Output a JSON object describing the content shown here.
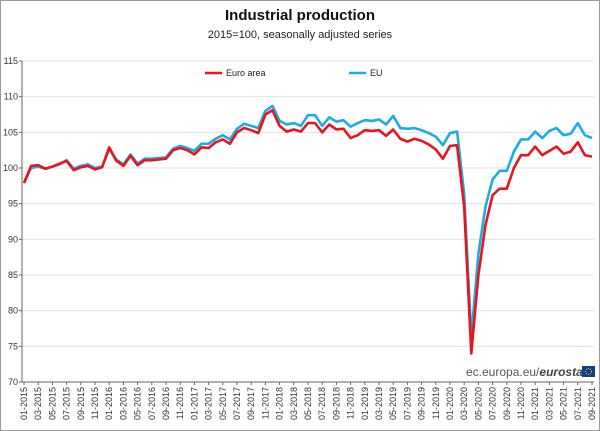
{
  "chart_data": {
    "type": "line",
    "title": "Industrial production",
    "subtitle": "2015=100, seasonally adjusted series",
    "ylim": [
      70,
      115
    ],
    "yticks": [
      70,
      75,
      80,
      85,
      90,
      95,
      100,
      105,
      110,
      115
    ],
    "xtick_labels": [
      "01-2015",
      "03-2015",
      "05-2015",
      "07-2015",
      "09-2015",
      "11-2015",
      "01-2016",
      "03-2016",
      "05-2016",
      "07-2016",
      "09-2016",
      "11-2016",
      "01-2017",
      "03-2017",
      "05-2017",
      "07-2017",
      "09-2017",
      "11-2017",
      "01-2018",
      "03-2018",
      "05-2018",
      "07-2018",
      "09-2018",
      "11-2018",
      "01-2019",
      "03-2019",
      "05-2019",
      "07-2019",
      "09-2019",
      "11-2019",
      "01-2020",
      "03-2020",
      "05-2020",
      "07-2020",
      "09-2020",
      "11-2020",
      "01-2021",
      "03-2021",
      "05-2021",
      "07-2021",
      "09-2021"
    ],
    "colors": {
      "Euro area": "#e8141e",
      "EU": "#1aace6"
    },
    "series": [
      {
        "name": "Euro area",
        "values": [
          97.9,
          100.3,
          100.4,
          99.9,
          100.2,
          100.6,
          101.0,
          99.7,
          100.1,
          100.3,
          99.8,
          100.1,
          102.9,
          101.0,
          100.3,
          101.7,
          100.4,
          101.1,
          101.1,
          101.2,
          101.3,
          102.5,
          102.8,
          102.5,
          101.9,
          102.9,
          102.8,
          103.6,
          104.0,
          103.4,
          105.0,
          105.6,
          105.3,
          104.9,
          107.5,
          108.1,
          105.9,
          105.1,
          105.4,
          105.1,
          106.3,
          106.3,
          105.0,
          106.1,
          105.4,
          105.5,
          104.2,
          104.6,
          105.3,
          105.2,
          105.3,
          104.5,
          105.4,
          104.1,
          103.7,
          104.1,
          103.8,
          103.3,
          102.6,
          101.3,
          103.1,
          103.2,
          94.5,
          74.0,
          85.0,
          92.0,
          96.2,
          97.1,
          97.1,
          100.0,
          101.8,
          101.8,
          103.0,
          101.8,
          102.4,
          103.0,
          102.0,
          102.3,
          103.6,
          101.8,
          101.6
        ]
      },
      {
        "name": "EU",
        "values": [
          97.9,
          100.0,
          100.2,
          99.9,
          100.2,
          100.5,
          101.1,
          99.9,
          100.3,
          100.5,
          100.0,
          100.2,
          102.6,
          101.2,
          100.5,
          101.9,
          100.6,
          101.3,
          101.3,
          101.4,
          101.5,
          102.7,
          103.1,
          102.8,
          102.4,
          103.4,
          103.4,
          104.1,
          104.6,
          104.0,
          105.5,
          106.2,
          105.9,
          105.6,
          108.0,
          108.7,
          106.6,
          106.1,
          106.3,
          105.9,
          107.4,
          107.4,
          105.9,
          107.1,
          106.5,
          106.7,
          105.8,
          106.3,
          106.7,
          106.6,
          106.8,
          106.1,
          107.3,
          105.6,
          105.5,
          105.6,
          105.3,
          104.9,
          104.4,
          103.2,
          104.9,
          105.1,
          96.3,
          76.3,
          88.0,
          94.6,
          98.4,
          99.6,
          99.6,
          102.3,
          104.0,
          104.0,
          105.1,
          104.2,
          105.2,
          105.6,
          104.6,
          104.8,
          106.3,
          104.6,
          104.2
        ]
      }
    ]
  },
  "source_text": "ec.europa.eu/",
  "source_brand": "eurostat"
}
